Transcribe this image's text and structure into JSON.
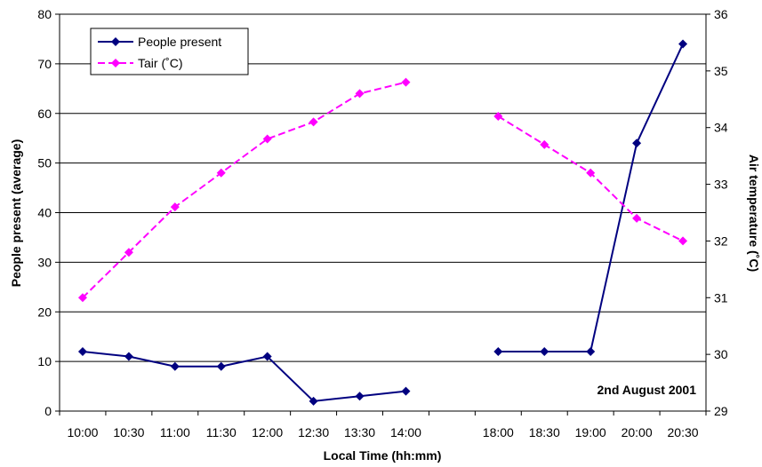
{
  "chart_data": {
    "type": "line",
    "title": "",
    "xlabel": "Local Time (hh:mm)",
    "ylabel": "People present (average)",
    "y2label": "Air temperature (˚C)",
    "annotation": "2nd August 2001",
    "categories": [
      "10:00",
      "10:30",
      "11:00",
      "11:30",
      "12:00",
      "12:30",
      "13:30",
      "14:00",
      "",
      "18:00",
      "18:30",
      "19:00",
      "20:00",
      "20:30"
    ],
    "ylim": [
      0,
      80
    ],
    "y2lim": [
      29,
      36
    ],
    "yticks": [
      0,
      10,
      20,
      30,
      40,
      50,
      60,
      70,
      80
    ],
    "y2ticks": [
      29,
      30,
      31,
      32,
      33,
      34,
      35,
      36
    ],
    "grid": true,
    "legend_position": "top-left",
    "series": [
      {
        "name": "People present",
        "axis": "left",
        "color": "#000080",
        "dash": "solid",
        "marker": "diamond",
        "segments": [
          {
            "x": [
              0.5,
              1.5,
              2.5,
              3.5,
              4.5,
              5.5,
              6.5,
              7.5
            ],
            "values": [
              12,
              11,
              9,
              9,
              11,
              2,
              3,
              4
            ]
          },
          {
            "x": [
              9.5,
              10.5,
              11.5,
              12.5,
              13.5
            ],
            "values": [
              12,
              12,
              12,
              54,
              74
            ]
          }
        ]
      },
      {
        "name": "Tair (˚C)",
        "axis": "right",
        "color": "#ff00ff",
        "dash": "dashed",
        "marker": "diamond",
        "segments": [
          {
            "x": [
              0.5,
              1.5,
              2.5,
              3.5,
              4.5,
              5.5,
              6.5,
              7.5
            ],
            "values": [
              31.0,
              31.8,
              32.6,
              33.2,
              33.8,
              34.1,
              34.6,
              34.8
            ]
          },
          {
            "x": [
              9.5,
              10.5,
              11.5,
              12.5,
              13.5
            ],
            "values": [
              34.2,
              33.7,
              33.2,
              32.4,
              32.0
            ]
          }
        ]
      }
    ]
  }
}
